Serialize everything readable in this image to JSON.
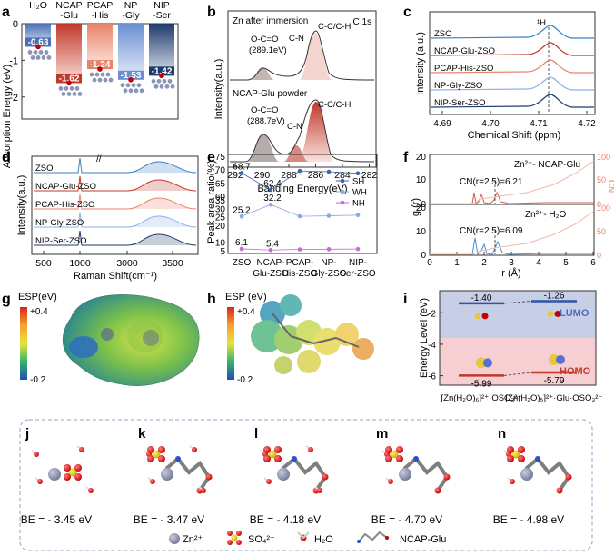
{
  "panel_labels": [
    "a",
    "b",
    "c",
    "d",
    "e",
    "f",
    "g",
    "h",
    "i",
    "j",
    "k",
    "l",
    "m",
    "n"
  ],
  "chart_data": [
    {
      "panel": "a",
      "type": "bar",
      "ylabel": "Adsorption Energy (eV)",
      "ylim": [
        -2.6,
        0
      ],
      "yticks": [
        "0",
        "-1",
        "-2"
      ],
      "categories": [
        "H₂O",
        "NCAP -Glu",
        "PCAP -His",
        "NP -Gly",
        "NIP -Ser"
      ],
      "values": [
        -0.63,
        -1.62,
        -1.24,
        -1.53,
        -1.42
      ],
      "value_labels": [
        "-0.63",
        "-1.62",
        "-1.24",
        "-1.53",
        "-1.42"
      ],
      "colors": [
        "#4a6fb3",
        "#c0392b",
        "#e8836a",
        "#6b8fd1",
        "#1f3a6b"
      ]
    },
    {
      "panel": "b",
      "type": "line",
      "xlabel": "Banding Energy(eV)",
      "ylabel": "Intensity(a.u.)",
      "corner_label": "C 1s",
      "xticks": [
        "292",
        "290",
        "288",
        "286",
        "284",
        "282"
      ],
      "series": [
        {
          "name": "Zn after immersion",
          "annotations": [
            "O-C=O (289.1eV)",
            "C-N",
            "C-C/C-H"
          ]
        },
        {
          "name": "NCAP-Glu powder",
          "annotations": [
            "O-C=O (288.7eV)",
            "C-N",
            "C-C/C-H"
          ]
        }
      ]
    },
    {
      "panel": "c",
      "type": "line",
      "xlabel": "Chemical Shift (ppm)",
      "ylabel": "Intensity (a.u.)",
      "peak_label": "¹H",
      "xticks": [
        "4.69",
        "4.70",
        "4.71",
        "4.72"
      ],
      "series": [
        "ZSO",
        "NCAP-Glu-ZSO",
        "PCAP-His-ZSO",
        "NP-Gly-ZSO",
        "NIP-Ser-ZSO"
      ]
    },
    {
      "panel": "d",
      "type": "line",
      "xlabel": "Raman Shift(cm⁻¹)",
      "ylabel": "Intensity(a.u.)",
      "xticks": [
        "500",
        "1000",
        "3000",
        "3500"
      ],
      "series": [
        "ZSO",
        "NCAP-Glu-ZSO",
        "PCAP-His-ZSO",
        "NP-Gly-ZSO",
        "NIP-Ser-ZSO"
      ]
    },
    {
      "panel": "e",
      "type": "line",
      "ylabel": "Peak area ratio(%)",
      "categories": [
        "ZSO",
        "NCAP- Glu-ZSO",
        "PCAP- His-ZSO",
        "NP- Gly-ZSO",
        "NIP- Ser-ZSO"
      ],
      "yticks_top": [
        "60",
        "65",
        "70",
        "75"
      ],
      "yticks_bottom": [
        "5",
        "10",
        "20",
        "25",
        "30",
        "35"
      ],
      "series": [
        {
          "name": "SH",
          "values": [
            68.7,
            62.4,
            69.5,
            69.2,
            68.6
          ]
        },
        {
          "name": "WH",
          "values": [
            25.2,
            32.2,
            25.3,
            25.6,
            26.0
          ]
        },
        {
          "name": "NH",
          "values": [
            6.1,
            5.4,
            5.8,
            5.9,
            6.0
          ]
        }
      ],
      "labels": [
        "68.7",
        "62.4",
        "25.2",
        "32.2",
        "6.1",
        "5.4"
      ]
    },
    {
      "panel": "f",
      "type": "line",
      "xlabel": "r (Å)",
      "ylabel": "g (r)",
      "ylabel_right": "CN",
      "xticks": [
        "0",
        "1",
        "2",
        "3",
        "4",
        "5",
        "6"
      ],
      "yticks_left": [
        "0",
        "10",
        "20"
      ],
      "yticks_right": [
        "0",
        "50",
        "100"
      ],
      "subplots": [
        {
          "title": "Zn²⁺- NCAP-Glu",
          "cn_label": "CN(r=2.5)=6.21"
        },
        {
          "title": "Zn²⁺- H₂O",
          "cn_label": "CN(r=2.5)=6.09"
        }
      ]
    },
    {
      "panel": "i",
      "type": "bar",
      "ylabel": "Energy Level (eV)",
      "yticks": [
        "-2",
        "-4",
        "-6"
      ],
      "categories": [
        "[Zn(H₂O)₆]²⁺·OSO₃²⁻",
        "[Zn(H₂O)₅]²⁺·Glu·OSO₃²⁻"
      ],
      "lumo": [
        -1.4,
        -1.26
      ],
      "homo": [
        -5.99,
        -5.79
      ],
      "lumo_labels": [
        "-1.40",
        "-1.26"
      ],
      "homo_labels": [
        "-5.99",
        "-5.79"
      ],
      "band_labels": {
        "lumo": "LUMO",
        "homo": "HOMO"
      }
    }
  ],
  "esp_g": {
    "title": "ESP(eV)",
    "max": "+0.4",
    "min": "-0.2"
  },
  "esp_h": {
    "title": "ESP (eV)",
    "max": "+0.4",
    "min": "-0.2"
  },
  "structures": [
    {
      "panel": "j",
      "be": "BE = - 3.45 eV"
    },
    {
      "panel": "k",
      "be": "BE = - 3.47 eV"
    },
    {
      "panel": "l",
      "be": "BE = - 4.18 eV"
    },
    {
      "panel": "m",
      "be": "BE = - 4.70 eV"
    },
    {
      "panel": "n",
      "be": "BE = - 4.98 eV"
    }
  ],
  "legend": {
    "zn": "Zn²⁺",
    "so4": "SO₄²⁻",
    "h2o": "H₂O",
    "glu": "NCAP-Glu"
  }
}
